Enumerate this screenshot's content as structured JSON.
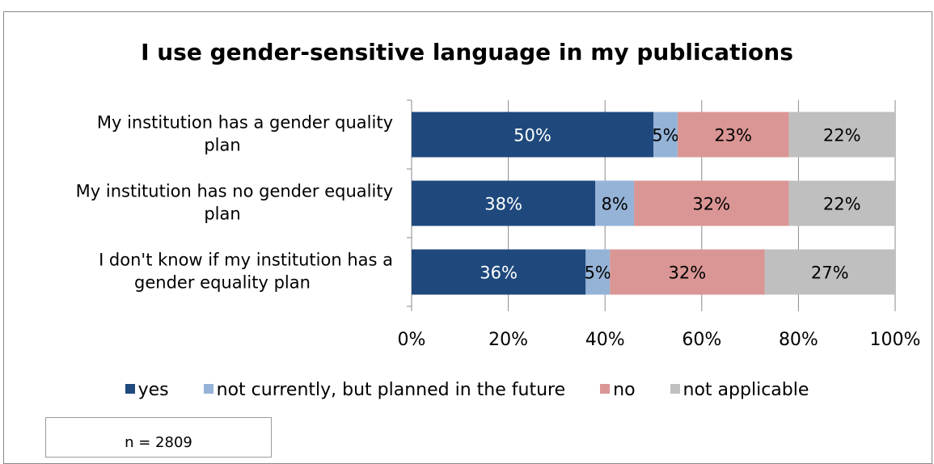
{
  "chart_data": {
    "type": "bar",
    "orientation": "horizontal",
    "stacked": true,
    "percent_stacked": true,
    "title": "I use gender-sensitive language in my publications",
    "categories": [
      "My institution has a gender quality plan",
      "My institution has no gender equality plan",
      "I don't know if my institution has a gender equality plan"
    ],
    "category_lines": [
      [
        "My institution has a gender quality",
        "plan"
      ],
      [
        "My institution has no gender equality",
        "plan"
      ],
      [
        "I don't know if my institution has a",
        "gender equality plan"
      ]
    ],
    "series": [
      {
        "name": "yes",
        "color": "#1f497d",
        "label_color": "#ffffff",
        "values": [
          50,
          38,
          36
        ],
        "labels": [
          "50%",
          "38%",
          "36%"
        ]
      },
      {
        "name": "not currently, but planned in the future",
        "color": "#95b3d7",
        "label_color": "#000000",
        "values": [
          5,
          8,
          5
        ],
        "labels": [
          "5%",
          "8%",
          "5%"
        ]
      },
      {
        "name": "no",
        "color": "#da9694",
        "label_color": "#000000",
        "values": [
          23,
          32,
          32
        ],
        "labels": [
          "23%",
          "32%",
          "32%"
        ]
      },
      {
        "name": "not applicable",
        "color": "#bfbfbf",
        "label_color": "#000000",
        "values": [
          22,
          22,
          27
        ],
        "labels": [
          "22%",
          "22%",
          "27%"
        ]
      }
    ],
    "xlim": [
      0,
      100
    ],
    "x_ticks": [
      "0%",
      "20%",
      "40%",
      "60%",
      "80%",
      "100%"
    ],
    "grid": true,
    "legend_position": "bottom"
  },
  "note": "n = 2809"
}
